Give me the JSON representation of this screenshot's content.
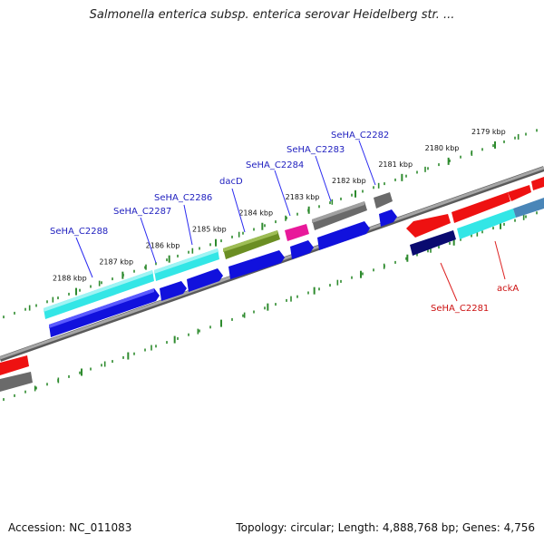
{
  "title": "Salmonella enterica subsp. enterica serovar Heidelberg str. ...",
  "footer": {
    "accession": "Accession: NC_011083",
    "summary": "Topology: circular; Length: 4,888,768 bp; Genes: 4,756"
  },
  "colors": {
    "backbone": "#8a8a8a",
    "tick": "#2e8b2e",
    "red": "#ee1111",
    "cyan": "#33e6e6",
    "blue": "#1111dd",
    "navy": "#0a0a70",
    "gray": "#6a6a6a",
    "olive": "#6b8e23",
    "magenta": "#e8199a",
    "steel": "#4a86b8",
    "label_blue": "#1f1fbf",
    "label_red": "#cc1111"
  },
  "scale": {
    "ticks": [
      {
        "label": "2179 kbp",
        "pos": 2179.0
      },
      {
        "label": "2180 kbp",
        "pos": 2180.0
      },
      {
        "label": "2181 kbp",
        "pos": 2181.0
      },
      {
        "label": "2182 kbp",
        "pos": 2182.0
      },
      {
        "label": "2183 kbp",
        "pos": 2183.0
      },
      {
        "label": "2184 kbp",
        "pos": 2184.0
      },
      {
        "label": "2185 kbp",
        "pos": 2185.0
      },
      {
        "label": "2186 kbp",
        "pos": 2186.0
      },
      {
        "label": "2187 kbp",
        "pos": 2187.0
      },
      {
        "label": "2188 kbp",
        "pos": 2188.0
      }
    ]
  },
  "genes": [
    {
      "label": "SeHA_C2288",
      "color": "label_blue"
    },
    {
      "label": "SeHA_C2287",
      "color": "label_blue"
    },
    {
      "label": "SeHA_C2286",
      "color": "label_blue"
    },
    {
      "label": "dacD",
      "color": "label_blue"
    },
    {
      "label": "SeHA_C2284",
      "color": "label_blue"
    },
    {
      "label": "SeHA_C2283",
      "color": "label_blue"
    },
    {
      "label": "SeHA_C2282",
      "color": "label_blue"
    },
    {
      "label": "SeHA_C2281",
      "color": "label_red"
    },
    {
      "label": "ackA",
      "color": "label_red"
    }
  ]
}
